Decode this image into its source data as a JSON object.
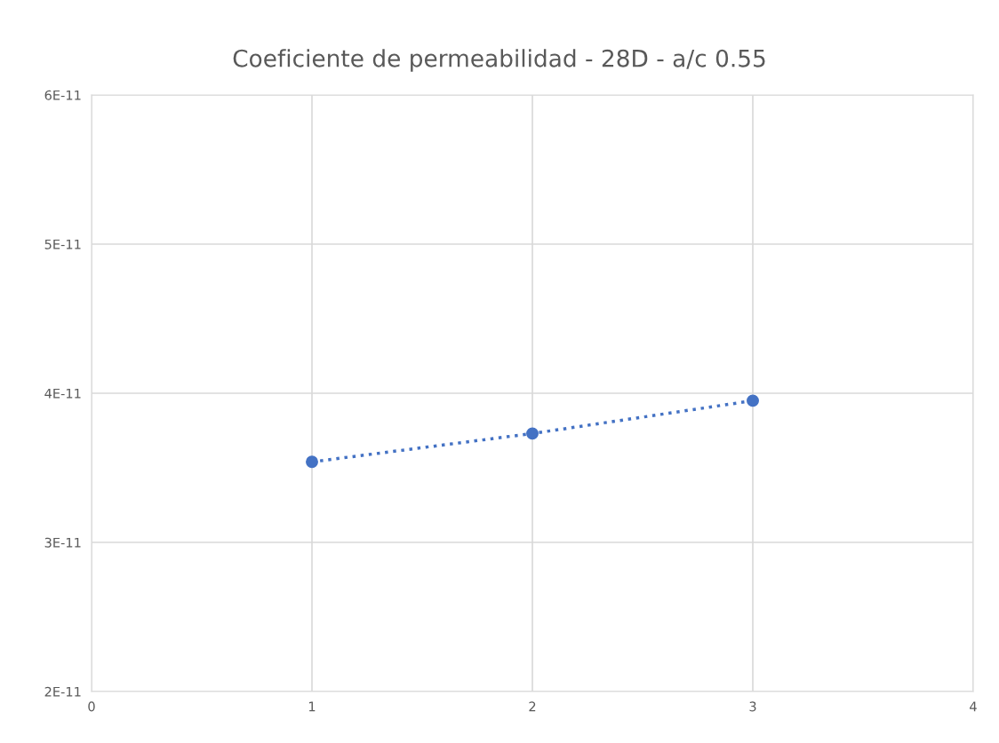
{
  "chart_data": {
    "type": "line",
    "title": "Coeficiente de permeabilidad - 28D - a/c 0.55",
    "x": [
      1,
      2,
      3
    ],
    "series": [
      {
        "color": "#4472c4",
        "values": [
          3.54e-11,
          3.73e-11,
          3.95e-11
        ]
      }
    ],
    "xlim": [
      0,
      4
    ],
    "xticks": [
      0,
      1,
      2,
      3,
      4
    ],
    "ylim": [
      2e-11,
      6e-11
    ],
    "yticks": [
      {
        "value": 2e-11,
        "label": "2E-11"
      },
      {
        "value": 3e-11,
        "label": "3E-11"
      },
      {
        "value": 4e-11,
        "label": "4E-11"
      },
      {
        "value": 5e-11,
        "label": "5E-11"
      },
      {
        "value": 6e-11,
        "label": "6E-11"
      }
    ],
    "grid": true,
    "marker": "circle",
    "line_style": "dotted"
  }
}
